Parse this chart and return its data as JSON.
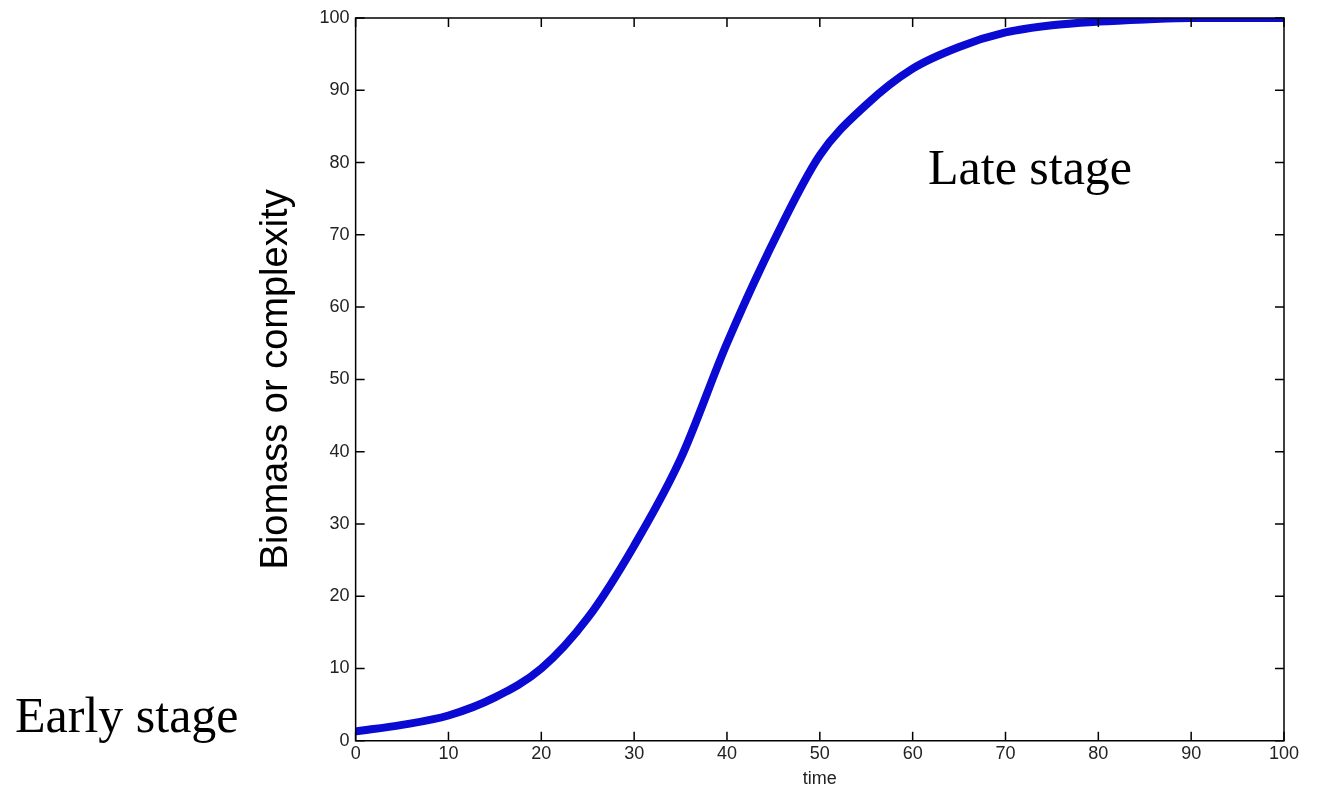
{
  "chart_data": {
    "type": "line",
    "xlabel": "time",
    "ylabel": "Biomass or complexity",
    "annotations": [
      "Late stage",
      "Early stage"
    ],
    "x": [
      0,
      5,
      10,
      15,
      20,
      25,
      30,
      35,
      40,
      45,
      50,
      55,
      60,
      65,
      70,
      75,
      80,
      85,
      90,
      95,
      100
    ],
    "series": [
      {
        "color": "#0a0ad2",
        "values": [
          1.3,
          2.2,
          3.5,
          6,
          10,
          17,
          27,
          39,
          55,
          69,
          81,
          88,
          93,
          96,
          98,
          99,
          99.5,
          99.8,
          100,
          100,
          100
        ]
      }
    ],
    "xlim": [
      0,
      100
    ],
    "xticks": [
      0,
      10,
      20,
      30,
      40,
      50,
      60,
      70,
      80,
      90,
      100
    ],
    "ylim": [
      0,
      100
    ],
    "yticks": [
      0,
      10,
      20,
      30,
      40,
      50,
      60,
      70,
      80,
      90,
      100
    ],
    "grid": false,
    "legend": false,
    "marker": "none",
    "line_style": "solid"
  }
}
